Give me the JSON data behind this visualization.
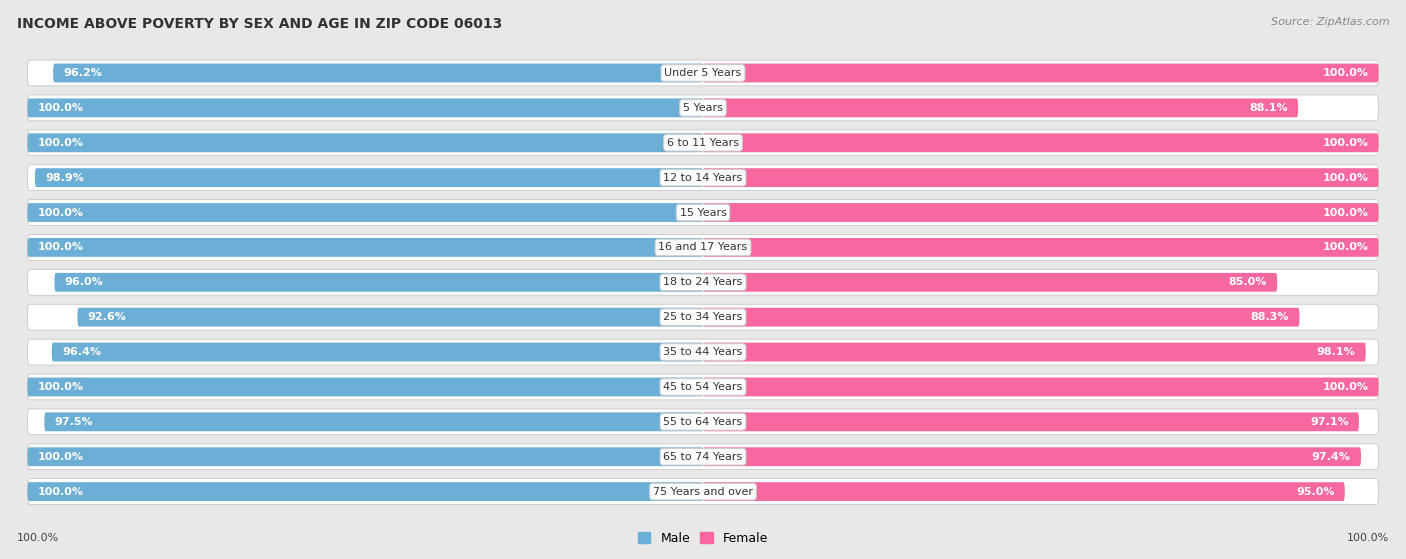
{
  "title": "INCOME ABOVE POVERTY BY SEX AND AGE IN ZIP CODE 06013",
  "source": "Source: ZipAtlas.com",
  "categories": [
    "Under 5 Years",
    "5 Years",
    "6 to 11 Years",
    "12 to 14 Years",
    "15 Years",
    "16 and 17 Years",
    "18 to 24 Years",
    "25 to 34 Years",
    "35 to 44 Years",
    "45 to 54 Years",
    "55 to 64 Years",
    "65 to 74 Years",
    "75 Years and over"
  ],
  "male_values": [
    96.2,
    100.0,
    100.0,
    98.9,
    100.0,
    100.0,
    96.0,
    92.6,
    96.4,
    100.0,
    97.5,
    100.0,
    100.0
  ],
  "female_values": [
    100.0,
    88.1,
    100.0,
    100.0,
    100.0,
    100.0,
    85.0,
    88.3,
    98.1,
    100.0,
    97.1,
    97.4,
    95.0
  ],
  "male_color": "#6baed6",
  "female_color": "#f768a1",
  "male_color_light": "#bdd7ee",
  "female_color_light": "#fcc5dc",
  "male_label": "Male",
  "female_label": "Female",
  "background_color": "#e8e8e8",
  "row_bg_color": "#d8d8d8",
  "bar_bg_color": "#f0f0f0",
  "title_fontsize": 10,
  "source_fontsize": 8,
  "category_fontsize": 8,
  "value_fontsize": 8,
  "legend_fontsize": 9,
  "footer_male": "100.0%",
  "footer_female": "100.0%"
}
